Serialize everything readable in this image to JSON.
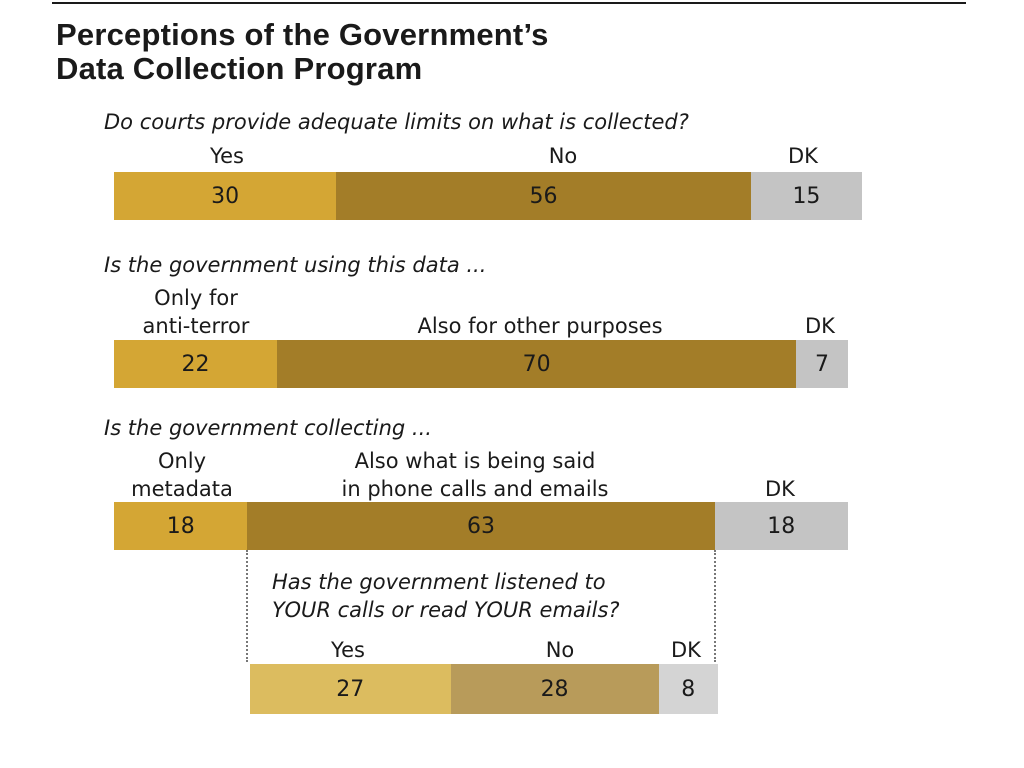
{
  "title_lines": [
    "Perceptions of the Government’s",
    "Data Collection Program"
  ],
  "colors": {
    "yes": "#d4a634",
    "no": "#a37d28",
    "dk": "#c4c4c4",
    "sub_yes": "#dcbc5f",
    "sub_no": "#b89b5a",
    "sub_dk": "#d4d4d4"
  },
  "chart_data": [
    {
      "type": "bar",
      "orientation": "horizontal-stacked",
      "question": "Do courts provide adequate limits on what is collected?",
      "categories": [
        "Yes",
        "No",
        "DK"
      ],
      "values": [
        30,
        56,
        15
      ]
    },
    {
      "type": "bar",
      "orientation": "horizontal-stacked",
      "question": "Is the government using this data ...",
      "categories": [
        "Only for anti-terror",
        "Also for other purposes",
        "DK"
      ],
      "category_lines": [
        [
          "Only for",
          "anti-terror"
        ],
        [
          "Also for other purposes"
        ],
        [
          "DK"
        ]
      ],
      "values": [
        22,
        70,
        7
      ]
    },
    {
      "type": "bar",
      "orientation": "horizontal-stacked",
      "question": "Is the government collecting ...",
      "categories": [
        "Only metadata",
        "Also what is being said in phone calls and emails",
        "DK"
      ],
      "category_lines": [
        [
          "Only",
          "metadata"
        ],
        [
          "Also what is being said",
          "in phone calls and emails"
        ],
        [
          "DK"
        ]
      ],
      "values": [
        18,
        63,
        18
      ]
    },
    {
      "type": "bar",
      "orientation": "horizontal-stacked",
      "question_lines": [
        "Has the government listened to",
        "YOUR calls or read YOUR emails?"
      ],
      "categories": [
        "Yes",
        "No",
        "DK"
      ],
      "values": [
        27,
        28,
        8
      ]
    }
  ]
}
